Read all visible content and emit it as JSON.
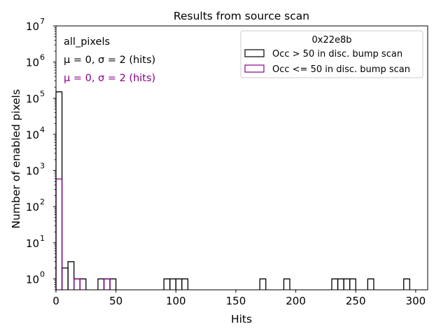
{
  "chart_data": {
    "type": "histogram",
    "title": "Results from source scan",
    "xlabel": "Hits",
    "ylabel": "Number of enabled pixels",
    "xlim": [
      0,
      310
    ],
    "ylim": [
      0.5,
      10000000
    ],
    "yscale": "log",
    "bin_width": 5,
    "x_ticks": [
      {
        "value": 0,
        "label": "0"
      },
      {
        "value": 50,
        "label": "50"
      },
      {
        "value": 100,
        "label": "100"
      },
      {
        "value": 150,
        "label": "150"
      },
      {
        "value": 200,
        "label": "200"
      },
      {
        "value": 250,
        "label": "250"
      },
      {
        "value": 300,
        "label": "300"
      }
    ],
    "y_ticks": [
      {
        "value": 1,
        "base": "10",
        "exp": "0"
      },
      {
        "value": 10,
        "base": "10",
        "exp": "1"
      },
      {
        "value": 100,
        "base": "10",
        "exp": "2"
      },
      {
        "value": 1000,
        "base": "10",
        "exp": "3"
      },
      {
        "value": 10000,
        "base": "10",
        "exp": "4"
      },
      {
        "value": 100000,
        "base": "10",
        "exp": "5"
      },
      {
        "value": 1000000,
        "base": "10",
        "exp": "6"
      },
      {
        "value": 10000000,
        "base": "10",
        "exp": "7"
      }
    ],
    "series": [
      {
        "name": "Occ > 50 in disc. bump scan",
        "color": "#000000",
        "bins": [
          {
            "x0": 0,
            "x1": 5,
            "count": 150000
          },
          {
            "x0": 5,
            "x1": 10,
            "count": 2
          },
          {
            "x0": 10,
            "x1": 15,
            "count": 3
          },
          {
            "x0": 15,
            "x1": 20,
            "count": 1
          },
          {
            "x0": 20,
            "x1": 25,
            "count": 1
          },
          {
            "x0": 35,
            "x1": 40,
            "count": 1
          },
          {
            "x0": 40,
            "x1": 45,
            "count": 1
          },
          {
            "x0": 45,
            "x1": 50,
            "count": 1
          },
          {
            "x0": 90,
            "x1": 95,
            "count": 1
          },
          {
            "x0": 95,
            "x1": 100,
            "count": 1
          },
          {
            "x0": 100,
            "x1": 105,
            "count": 1
          },
          {
            "x0": 105,
            "x1": 110,
            "count": 1
          },
          {
            "x0": 170,
            "x1": 175,
            "count": 1
          },
          {
            "x0": 190,
            "x1": 195,
            "count": 1
          },
          {
            "x0": 230,
            "x1": 235,
            "count": 1
          },
          {
            "x0": 235,
            "x1": 240,
            "count": 1
          },
          {
            "x0": 240,
            "x1": 245,
            "count": 1
          },
          {
            "x0": 245,
            "x1": 250,
            "count": 1
          },
          {
            "x0": 260,
            "x1": 265,
            "count": 1
          },
          {
            "x0": 290,
            "x1": 295,
            "count": 1
          }
        ]
      },
      {
        "name": "Occ <= 50 in disc. bump scan",
        "color": "#8b008b",
        "bins": [
          {
            "x0": 0,
            "x1": 5,
            "count": 580
          },
          {
            "x0": 15,
            "x1": 20,
            "count": 1
          },
          {
            "x0": 40,
            "x1": 45,
            "count": 1
          }
        ]
      }
    ],
    "legend": {
      "title": "0x22e8b",
      "location": "top-right"
    },
    "annotations": {
      "line1": "all_pixels",
      "line2": "μ = 0, σ = 2 (hits)",
      "line3": "μ = 0, σ = 2 (hits)",
      "line3_color": "#8b008b"
    }
  }
}
